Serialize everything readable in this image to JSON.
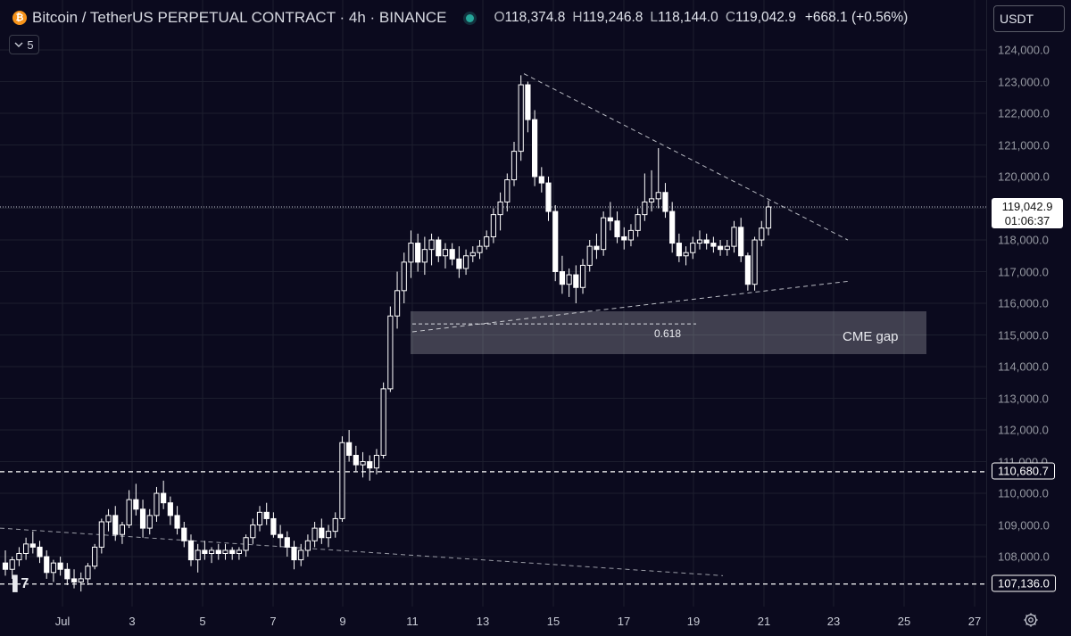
{
  "header": {
    "logo_glyph": "₿",
    "title": "Bitcoin / TetherUS PERPETUAL CONTRACT · 4h · BINANCE",
    "ohlc": {
      "o_label": "O",
      "o_value": "118,374.8",
      "h_label": "H",
      "h_value": "119,246.8",
      "l_label": "L",
      "l_value": "118,144.0",
      "c_label": "C",
      "c_value": "119,042.9",
      "change": "+668.1 (+0.56%)"
    },
    "status_color": "#26a69a",
    "indicator_count": "5",
    "currency": "USDT"
  },
  "price_axis": {
    "ticks": [
      "124,000.0",
      "123,000.0",
      "122,000.0",
      "121,000.0",
      "120,000.0",
      "119,000.0",
      "118,000.0",
      "117,000.0",
      "116,000.0",
      "115,000.0",
      "114,000.0",
      "113,000.0",
      "112,000.0",
      "111,000.0",
      "110,000.0",
      "109,000.0",
      "108,000.0"
    ],
    "last_price": "119,042.9",
    "countdown": "01:06:37",
    "level_labels": [
      "110,680.7",
      "107,136.0"
    ]
  },
  "time_axis": {
    "ticks": [
      "Jul",
      "3",
      "5",
      "7",
      "9",
      "11",
      "13",
      "15",
      "17",
      "19",
      "21",
      "23",
      "25",
      "27"
    ]
  },
  "annotations": {
    "cme_gap_label": "CME gap",
    "fib_label": "0.618"
  },
  "chart_data": {
    "type": "candlestick",
    "symbol": "BTCUSDT.P",
    "interval": "4h",
    "ylim": [
      106900,
      124600
    ],
    "x": [
      "Jul",
      "3",
      "5",
      "7",
      "9",
      "11",
      "13",
      "15",
      "17",
      "19",
      "21",
      "23",
      "25",
      "27"
    ],
    "ohlc_series": [
      [
        107800,
        108200,
        107400,
        107600
      ],
      [
        107600,
        108000,
        107300,
        107900
      ],
      [
        107900,
        108300,
        107700,
        108100
      ],
      [
        108100,
        108600,
        107900,
        108400
      ],
      [
        108400,
        108800,
        108100,
        108300
      ],
      [
        108300,
        108500,
        107800,
        108000
      ],
      [
        108000,
        108200,
        107300,
        107500
      ],
      [
        107500,
        107900,
        107200,
        107800
      ],
      [
        107800,
        108000,
        107400,
        107600
      ],
      [
        107600,
        107800,
        107100,
        107300
      ],
      [
        107300,
        107600,
        107000,
        107200
      ],
      [
        107200,
        107500,
        106900,
        107300
      ],
      [
        107300,
        107800,
        107100,
        107700
      ],
      [
        107700,
        108400,
        107600,
        108300
      ],
      [
        108300,
        109200,
        108100,
        109100
      ],
      [
        109100,
        109500,
        108800,
        109300
      ],
      [
        109300,
        109600,
        108500,
        108700
      ],
      [
        108700,
        109100,
        108400,
        109000
      ],
      [
        109000,
        110100,
        108900,
        109800
      ],
      [
        109800,
        110300,
        109300,
        109500
      ],
      [
        109500,
        109800,
        108600,
        108900
      ],
      [
        108900,
        109500,
        108700,
        109300
      ],
      [
        109300,
        110200,
        109100,
        110000
      ],
      [
        110000,
        110400,
        109500,
        109700
      ],
      [
        109700,
        109900,
        109000,
        109300
      ],
      [
        109300,
        109600,
        108700,
        108900
      ],
      [
        108900,
        109100,
        108300,
        108500
      ],
      [
        108500,
        108700,
        107700,
        107900
      ],
      [
        107900,
        108400,
        107500,
        108200
      ],
      [
        108200,
        108500,
        107900,
        108100
      ],
      [
        108100,
        108300,
        107800,
        108200
      ],
      [
        108200,
        108400,
        107900,
        108100
      ],
      [
        108100,
        108400,
        107900,
        108200
      ],
      [
        108200,
        108300,
        107900,
        108100
      ],
      [
        108100,
        108300,
        107900,
        108200
      ],
      [
        108200,
        108700,
        108000,
        108600
      ],
      [
        108600,
        109200,
        108400,
        109000
      ],
      [
        109000,
        109600,
        108800,
        109400
      ],
      [
        109400,
        109700,
        109000,
        109200
      ],
      [
        109200,
        109400,
        108600,
        108700
      ],
      [
        108700,
        109000,
        108300,
        108600
      ],
      [
        108600,
        108800,
        108000,
        108300
      ],
      [
        108300,
        108500,
        107600,
        107900
      ],
      [
        107900,
        108400,
        107700,
        108200
      ],
      [
        108200,
        108700,
        108000,
        108500
      ],
      [
        108500,
        109100,
        108300,
        108900
      ],
      [
        108900,
        109200,
        108400,
        108600
      ],
      [
        108600,
        109000,
        108300,
        108800
      ],
      [
        108800,
        109400,
        108600,
        109200
      ],
      [
        109200,
        111800,
        109100,
        111600
      ],
      [
        111600,
        112000,
        111000,
        111200
      ],
      [
        111200,
        111500,
        110700,
        110900
      ],
      [
        110900,
        111300,
        110500,
        111000
      ],
      [
        111000,
        111200,
        110400,
        110800
      ],
      [
        110800,
        111400,
        110600,
        111200
      ],
      [
        111200,
        113500,
        111100,
        113300
      ],
      [
        113300,
        115900,
        113200,
        115600
      ],
      [
        115600,
        117000,
        115200,
        116400
      ],
      [
        116400,
        117600,
        116000,
        117300
      ],
      [
        117300,
        118300,
        116800,
        117900
      ],
      [
        117900,
        118200,
        117000,
        117300
      ],
      [
        117300,
        118100,
        116900,
        117700
      ],
      [
        117700,
        118200,
        117200,
        118000
      ],
      [
        118000,
        118100,
        117300,
        117500
      ],
      [
        117500,
        117900,
        117100,
        117700
      ],
      [
        117700,
        117900,
        117200,
        117400
      ],
      [
        117400,
        117800,
        116800,
        117100
      ],
      [
        117100,
        117700,
        116900,
        117500
      ],
      [
        117500,
        117800,
        117300,
        117600
      ],
      [
        117600,
        118000,
        117400,
        117800
      ],
      [
        117800,
        118300,
        117700,
        118100
      ],
      [
        118100,
        119000,
        117900,
        118800
      ],
      [
        118800,
        119500,
        118300,
        119200
      ],
      [
        119200,
        120100,
        118900,
        119900
      ],
      [
        119900,
        121100,
        119700,
        120800
      ],
      [
        120800,
        123200,
        120500,
        122900
      ],
      [
        122900,
        123000,
        121400,
        121800
      ],
      [
        121800,
        122100,
        119700,
        120000
      ],
      [
        120000,
        120300,
        119500,
        119800
      ],
      [
        119800,
        120000,
        118600,
        118900
      ],
      [
        118900,
        119100,
        116700,
        117000
      ],
      [
        117000,
        117500,
        116300,
        116600
      ],
      [
        116600,
        117100,
        116200,
        116900
      ],
      [
        116900,
        117200,
        116000,
        116500
      ],
      [
        116500,
        117400,
        116300,
        117200
      ],
      [
        117200,
        118000,
        117000,
        117800
      ],
      [
        117800,
        118200,
        117400,
        117700
      ],
      [
        117700,
        118900,
        117500,
        118700
      ],
      [
        118700,
        119200,
        118300,
        118600
      ],
      [
        118600,
        118900,
        117900,
        118100
      ],
      [
        118100,
        118400,
        117700,
        118000
      ],
      [
        118000,
        118500,
        117800,
        118300
      ],
      [
        118300,
        119000,
        118100,
        118800
      ],
      [
        118800,
        120100,
        118600,
        119200
      ],
      [
        119200,
        120200,
        118900,
        119300
      ],
      [
        119300,
        120900,
        119000,
        119500
      ],
      [
        119500,
        119800,
        118700,
        118900
      ],
      [
        118900,
        119200,
        117600,
        117900
      ],
      [
        117900,
        118200,
        117300,
        117500
      ],
      [
        117500,
        117800,
        117200,
        117600
      ],
      [
        117600,
        118100,
        117400,
        117900
      ],
      [
        117900,
        118300,
        117700,
        118000
      ],
      [
        118000,
        118200,
        117700,
        117900
      ],
      [
        117900,
        118100,
        117600,
        117800
      ],
      [
        117800,
        118000,
        117500,
        117700
      ],
      [
        117700,
        118000,
        117500,
        117800
      ],
      [
        117800,
        118600,
        117600,
        118400
      ],
      [
        118400,
        118700,
        117300,
        117500
      ],
      [
        117500,
        117600,
        116400,
        116600
      ],
      [
        116600,
        118100,
        116400,
        118000
      ],
      [
        118000,
        118600,
        117800,
        118374.8
      ],
      [
        118374.8,
        119246.8,
        118144.0,
        119042.9
      ]
    ],
    "horizontal_levels": [
      119042.9,
      110680.7,
      107136.0
    ],
    "cme_gap": [
      114450,
      115700
    ],
    "fib_level": {
      "label": "0.618",
      "value": 115350
    },
    "trendlines": [
      {
        "name": "upper-triangle",
        "from": [
          123250,
          "14"
        ],
        "to": [
          118000,
          "23.5"
        ]
      },
      {
        "name": "lower-triangle",
        "from": [
          115100,
          "11"
        ],
        "to": [
          116700,
          "23.5"
        ]
      },
      {
        "name": "old-downtrend",
        "from": [
          108900,
          "Jul-start"
        ],
        "to": [
          107400,
          "19.5"
        ]
      }
    ],
    "grid": true,
    "colors": {
      "up": "#ffffff",
      "down": "#ffffff",
      "background": "#0b0a1e",
      "grid": "#1c1e2e"
    }
  }
}
